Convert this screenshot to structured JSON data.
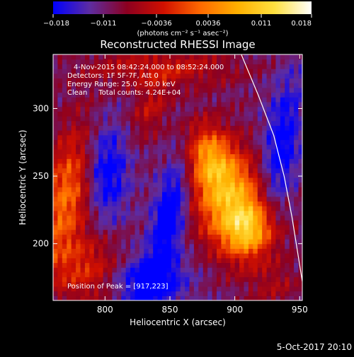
{
  "chart_data": {
    "type": "heatmap",
    "title": "Reconstructed RHESSI Image",
    "colorbar": {
      "tick_labels": [
        "−0.018",
        "−0.011",
        "−0.0036",
        "0.0036",
        "0.011",
        "0.018"
      ],
      "ticks": [
        -0.018,
        -0.011,
        -0.0036,
        0.0036,
        0.011,
        0.018
      ],
      "range": [
        -0.018,
        0.018
      ],
      "unit_label": "(photons cm⁻² s⁻¹ asec⁻²)",
      "colors": [
        "#0000ff",
        "#5e2ca0",
        "#8c0020",
        "#d01000",
        "#ff6a00",
        "#ffb000",
        "#ffe040",
        "#ffffff"
      ]
    },
    "xlabel": "Heliocentric X (arcsec)",
    "ylabel": "Heliocentric Y (arcsec)",
    "xlim": [
      760,
      952
    ],
    "ylim": [
      158,
      340
    ],
    "xticks": [
      800,
      850,
      900,
      950
    ],
    "yticks": [
      200,
      250,
      300
    ],
    "annotations": [
      "4-Nov-2015 08:42:24.000 to 08:52:24.000",
      "Detectors: 1F 5F-7F, Att 0",
      "Energy Range: 25.0 - 50.0 keV",
      "Clean     Total counts: 4.24E+04"
    ],
    "peak_label": "Position of Peak = [917,223]",
    "peak": [
      917,
      223
    ],
    "limb_curve": [
      [
        905,
        340
      ],
      [
        918,
        310
      ],
      [
        930,
        280
      ],
      [
        938,
        250
      ],
      [
        944,
        220
      ],
      [
        949,
        190
      ],
      [
        952,
        172
      ]
    ],
    "sources": [
      {
        "x": 897,
        "y": 232,
        "sx": 20,
        "sy": 28,
        "value": 0.018,
        "angle": -0.3
      },
      {
        "x": 880,
        "y": 265,
        "sx": 12,
        "sy": 18,
        "value": 0.011,
        "angle": -0.3
      },
      {
        "x": 912,
        "y": 210,
        "sx": 14,
        "sy": 14,
        "value": 0.012,
        "angle": 0
      },
      {
        "x": 770,
        "y": 235,
        "sx": 14,
        "sy": 40,
        "value": 0.013,
        "angle": 0.25
      },
      {
        "x": 790,
        "y": 180,
        "sx": 20,
        "sy": 18,
        "value": 0.009,
        "angle": 0
      },
      {
        "x": 845,
        "y": 330,
        "sx": 40,
        "sy": 10,
        "value": 0.007,
        "angle": 0
      },
      {
        "x": 835,
        "y": 300,
        "sx": 9,
        "sy": 16,
        "value": 0.006,
        "angle": 0.4
      },
      {
        "x": 930,
        "y": 170,
        "sx": 14,
        "sy": 12,
        "value": 0.004,
        "angle": 0
      },
      {
        "x": 850,
        "y": 222,
        "sx": 9,
        "sy": 32,
        "value": -0.011,
        "angle": 0.2
      },
      {
        "x": 830,
        "y": 172,
        "sx": 22,
        "sy": 14,
        "value": -0.01,
        "angle": 0
      },
      {
        "x": 800,
        "y": 255,
        "sx": 12,
        "sy": 26,
        "value": -0.01,
        "angle": 0
      },
      {
        "x": 935,
        "y": 268,
        "sx": 10,
        "sy": 40,
        "value": -0.009,
        "angle": 0.15
      }
    ]
  },
  "footer": {
    "date_label": "5-Oct-2017 20:10"
  }
}
